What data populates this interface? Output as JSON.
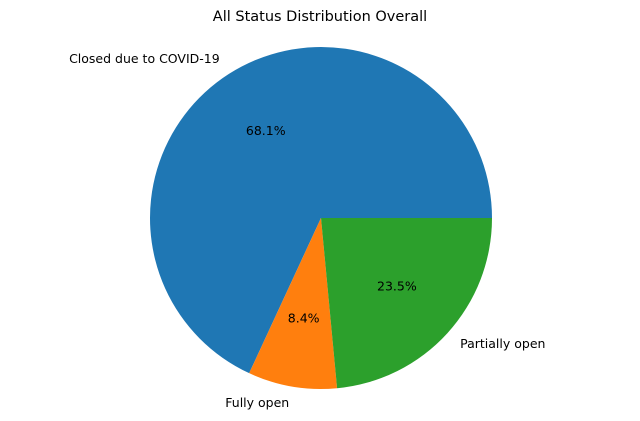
{
  "chart_data": {
    "type": "pie",
    "title": "All Status Distribution Overall",
    "start_angle_deg": 0,
    "direction": "counterclockwise",
    "slices": [
      {
        "label": "Closed due to COVID-19",
        "value": 68.1,
        "pct_label": "68.1%",
        "color": "#1f77b4"
      },
      {
        "label": "Fully open",
        "value": 8.4,
        "pct_label": "8.4%",
        "color": "#ff7f0e"
      },
      {
        "label": "Partially open",
        "value": 23.5,
        "pct_label": "23.5%",
        "color": "#2ca02c"
      }
    ]
  }
}
